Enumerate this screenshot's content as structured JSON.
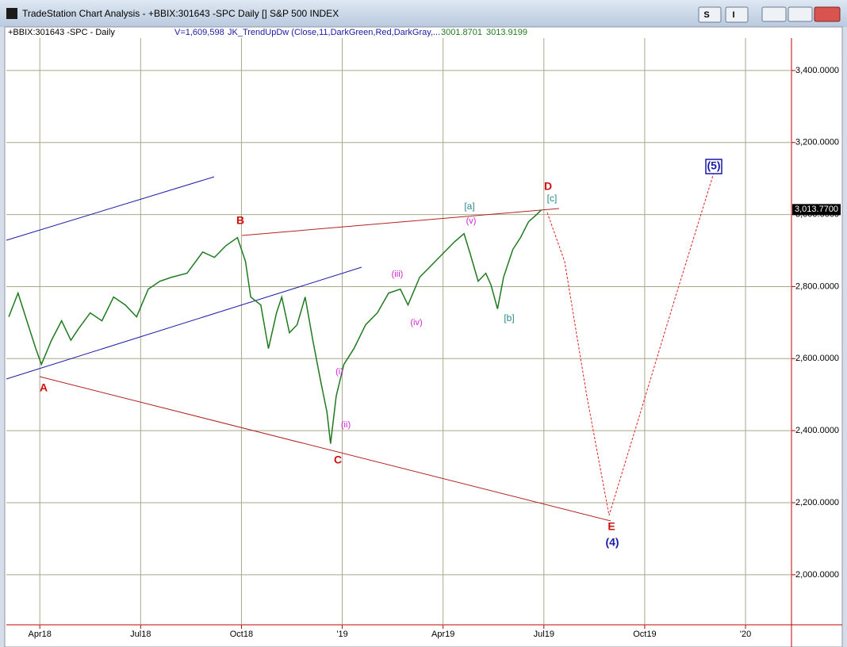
{
  "window": {
    "title": "TradeStation Chart Analysis - +BBIX:301643 -SPC Daily [] S&P 500 INDEX",
    "buttons": [
      "S",
      "I"
    ]
  },
  "chart_data": {
    "type": "line",
    "symbol": "+BBIX:301643 -SPC - Daily",
    "volume": "V=1,609,598",
    "indicator": "JK_TrendUpDw (Close,11,DarkGreen,Red,DarkGray,...",
    "indicator_values": [
      3001.8701,
      3013.9199
    ],
    "last_price": {
      "value": 3013.77,
      "label": "3,013.7700"
    },
    "series": [
      {
        "name": "SPC",
        "color": "#1f7a1f",
        "x": [
          2018.173,
          2018.196,
          2018.221,
          2018.24,
          2018.254,
          2018.279,
          2018.304,
          2018.327,
          2018.346,
          2018.375,
          2018.404,
          2018.433,
          2018.462,
          2018.49,
          2018.519,
          2018.548,
          2018.577,
          2018.615,
          2018.654,
          2018.683,
          2018.712,
          2018.74,
          2018.76,
          2018.773,
          2018.798,
          2018.817,
          2018.837,
          2018.85,
          2018.869,
          2018.888,
          2018.908,
          2018.927,
          2018.946,
          2018.962,
          2018.971,
          2018.985,
          2019.004,
          2019.029,
          2019.058,
          2019.087,
          2019.115,
          2019.144,
          2019.163,
          2019.192,
          2019.221,
          2019.25,
          2019.279,
          2019.302,
          2019.317,
          2019.337,
          2019.356,
          2019.369,
          2019.385,
          2019.4,
          2019.423,
          2019.442,
          2019.462,
          2019.481,
          2019.494
        ],
        "values": [
          2716,
          2782,
          2694,
          2628,
          2584,
          2651,
          2705,
          2651,
          2683,
          2727,
          2705,
          2771,
          2749,
          2716,
          2793,
          2815,
          2826,
          2837,
          2896,
          2881,
          2914,
          2936,
          2870,
          2771,
          2749,
          2628,
          2727,
          2771,
          2672,
          2694,
          2771,
          2651,
          2540,
          2452,
          2364,
          2496,
          2584,
          2628,
          2694,
          2727,
          2782,
          2793,
          2749,
          2826,
          2859,
          2892,
          2925,
          2947,
          2892,
          2815,
          2837,
          2804,
          2738,
          2826,
          2903,
          2936,
          2980,
          2999,
          3013
        ]
      }
    ],
    "xlim": [
      2018.167,
      2020.114
    ],
    "xticks": [
      {
        "value": 2018.25,
        "label": "Apr18"
      },
      {
        "value": 2018.5,
        "label": "Jul18"
      },
      {
        "value": 2018.75,
        "label": "Oct18"
      },
      {
        "value": 2019.0,
        "label": "'19"
      },
      {
        "value": 2019.25,
        "label": "Apr19"
      },
      {
        "value": 2019.5,
        "label": "Jul19"
      },
      {
        "value": 2019.75,
        "label": "Oct19"
      },
      {
        "value": 2020.0,
        "label": "'20"
      }
    ],
    "ylim": [
      1861,
      3490
    ],
    "yticks": [
      {
        "value": 2000,
        "label": "2,000.0000"
      },
      {
        "value": 2200,
        "label": "2,200.0000"
      },
      {
        "value": 2400,
        "label": "2,400.0000"
      },
      {
        "value": 2600,
        "label": "2,600.0000"
      },
      {
        "value": 2800,
        "label": "2,800.0000"
      },
      {
        "value": 3000,
        "label": "3,000.0000"
      },
      {
        "value": 3200,
        "label": "3,200.0000"
      },
      {
        "value": 3400,
        "label": "3,400.0000"
      }
    ],
    "grid": true,
    "annotations": [
      "A",
      "B",
      "C",
      "D",
      "E",
      "(4)",
      "(5)",
      "[a]",
      "[b]",
      "[c]",
      "(i)",
      "(ii)",
      "(iii)",
      "(iv)",
      "(v)"
    ]
  }
}
